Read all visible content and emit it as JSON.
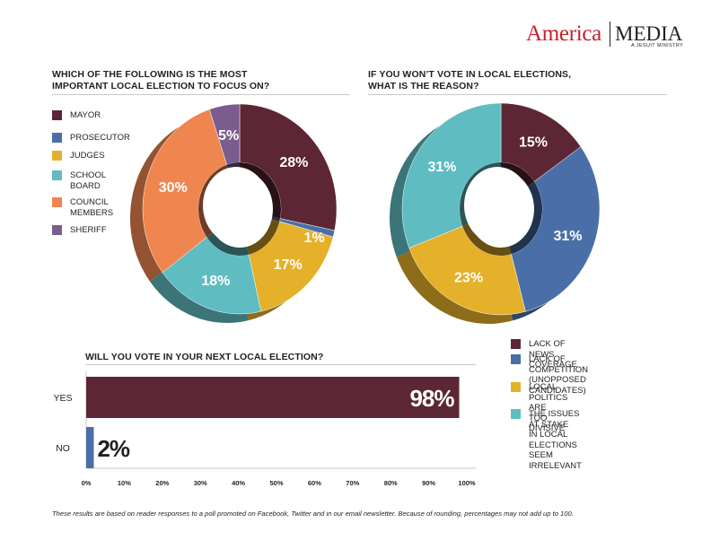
{
  "logo": {
    "main": "America",
    "media": "MEDIA",
    "sub": "A JESUIT MINISTRY"
  },
  "footnote": "These results are based on reader responses to a poll promoted on Facebook, Twitter and in our email newsletter. Because of rounding, percentages may not add up to 100.",
  "colors": {
    "maroon": "#5c2634",
    "blue": "#4a6fa8",
    "yellow": "#e5b02a",
    "teal": "#5fbcc1",
    "orange": "#ef8650",
    "purple": "#7a5c8e"
  },
  "chart_data": [
    {
      "type": "pie",
      "title": "WHICH OF THE FOLLOWING IS THE MOST\nIMPORTANT LOCAL ELECTION TO FOCUS ON?",
      "categories": [
        "MAYOR",
        "PROSECUTOR",
        "JUDGES",
        "SCHOOL\nBOARD",
        "COUNCIL\nMEMBERS",
        "SHERIFF"
      ],
      "values": [
        28,
        1,
        17,
        18,
        30,
        5
      ],
      "labels": [
        "28%",
        "1%",
        "17%",
        "18%",
        "30%",
        "5%"
      ],
      "colors": [
        "#5c2634",
        "#4a6fa8",
        "#e5b02a",
        "#5fbcc1",
        "#ef8650",
        "#7a5c8e"
      ],
      "legend": "left"
    },
    {
      "type": "pie",
      "title": "IF YOU WON’T VOTE IN LOCAL ELECTIONS,\nWHAT IS THE REASON?",
      "categories": [
        "LACK OF NEWS COVERAGE",
        "LACK OF COMPETITION\n(UNOPPOSED CANDIDATES)",
        "LOCAL POLITICS ARE\nTOO DIVISIVE",
        "THE ISSUES AT STAKE\nIN LOCAL ELECTIONS\nSEEM IRRELEVANT"
      ],
      "values": [
        15,
        31,
        23,
        31
      ],
      "labels": [
        "15%",
        "31%",
        "23%",
        "31%"
      ],
      "colors": [
        "#5c2634",
        "#4a6fa8",
        "#e5b02a",
        "#5fbcc1"
      ],
      "legend": "bottom-right"
    },
    {
      "type": "bar",
      "title": "WILL YOU VOTE IN YOUR NEXT LOCAL ELECTION?",
      "categories": [
        "YES",
        "NO"
      ],
      "values": [
        98,
        2
      ],
      "labels": [
        "98%",
        "2%"
      ],
      "colors": [
        "#5c2634",
        "#4a6fa8"
      ],
      "xlim": [
        0,
        100
      ],
      "ticks": [
        "0%",
        "10%",
        "20%",
        "30%",
        "40%",
        "50%",
        "60%",
        "70%",
        "80%",
        "90%",
        "100%"
      ]
    }
  ]
}
